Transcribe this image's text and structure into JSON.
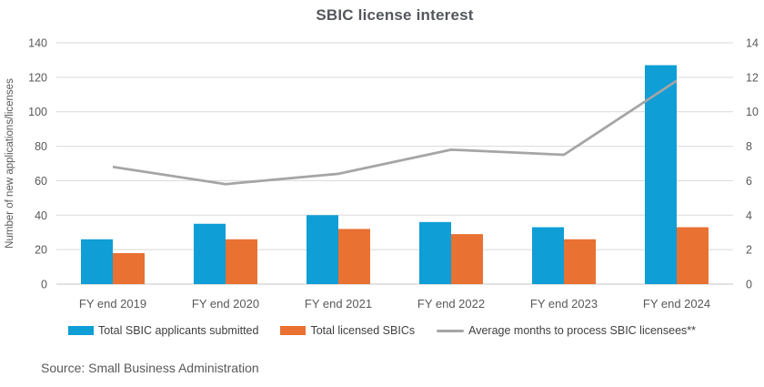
{
  "source": "Source: Small Business Administration",
  "chart_data": {
    "type": "combo",
    "title": "SBIC license interest",
    "xlabel": "",
    "ylabel": "Number of new applications/licenses",
    "categories": [
      "FY end 2019",
      "FY end 2020",
      "FY end 2021",
      "FY end 2022",
      "FY end 2023",
      "FY end 2024"
    ],
    "series": [
      {
        "name": "Total SBIC applicants submitted",
        "type": "bar",
        "axis": "left",
        "color": "#0F9ED5",
        "values": [
          26,
          35,
          40,
          36,
          33,
          127
        ]
      },
      {
        "name": "Total licensed SBICs",
        "type": "bar",
        "axis": "left",
        "color": "#E97132",
        "values": [
          18,
          26,
          32,
          29,
          26,
          33
        ]
      },
      {
        "name": "Average months to process SBIC licensees**",
        "type": "line",
        "axis": "right",
        "color": "#A5A5A5",
        "values": [
          6.8,
          5.8,
          6.4,
          7.8,
          7.5,
          11.8
        ]
      }
    ],
    "ylim_left": [
      0,
      140
    ],
    "ylim_right": [
      0,
      14
    ],
    "ytick_step_left": 20,
    "ytick_step_right": 2,
    "grid": true,
    "legend_position": "bottom",
    "colors": {
      "grid": "#D9D9D9",
      "axis": "#C6C6C6",
      "tick_text": "#595959",
      "title_text": "#54575D"
    }
  }
}
